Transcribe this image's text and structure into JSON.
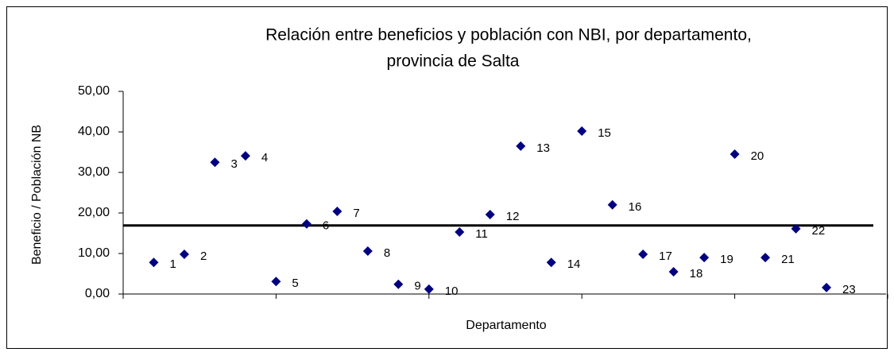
{
  "chart_data": {
    "type": "scatter",
    "title": [
      "Relación entre beneficios y población con NBI, por departamento,",
      "provincia de Salta"
    ],
    "x_label": "Departamento",
    "y_label": "Beneficio / Población NB",
    "x": [
      1,
      2,
      3,
      4,
      5,
      6,
      7,
      8,
      9,
      10,
      11,
      12,
      13,
      14,
      15,
      16,
      17,
      18,
      19,
      20,
      21,
      22,
      23
    ],
    "values": [
      7.8,
      9.8,
      32.5,
      34.1,
      3.1,
      17.3,
      20.4,
      10.6,
      2.4,
      1.2,
      15.3,
      19.6,
      36.5,
      7.8,
      40.2,
      22.0,
      9.8,
      5.5,
      9.0,
      34.5,
      9.0,
      16.1,
      1.6
    ],
    "point_labels": [
      "1",
      "2",
      "3",
      "4",
      "5",
      "6",
      "7",
      "8",
      "9",
      "10",
      "11",
      "12",
      "13",
      "14",
      "15",
      "16",
      "17",
      "18",
      "19",
      "20",
      "21",
      "22",
      "23"
    ],
    "color": "#000080",
    "reference_line": 16.9,
    "xlim": [
      0,
      25
    ],
    "xticks": [
      0,
      5,
      10,
      15,
      20,
      25
    ],
    "ylim": [
      0,
      50
    ],
    "yticks": [
      {
        "value": 0,
        "label": "0,00"
      },
      {
        "value": 10,
        "label": "10,00"
      },
      {
        "value": 20,
        "label": "20,00"
      },
      {
        "value": 30,
        "label": "30,00"
      },
      {
        "value": 40,
        "label": "40,00"
      },
      {
        "value": 50,
        "label": "50,00"
      }
    ]
  }
}
